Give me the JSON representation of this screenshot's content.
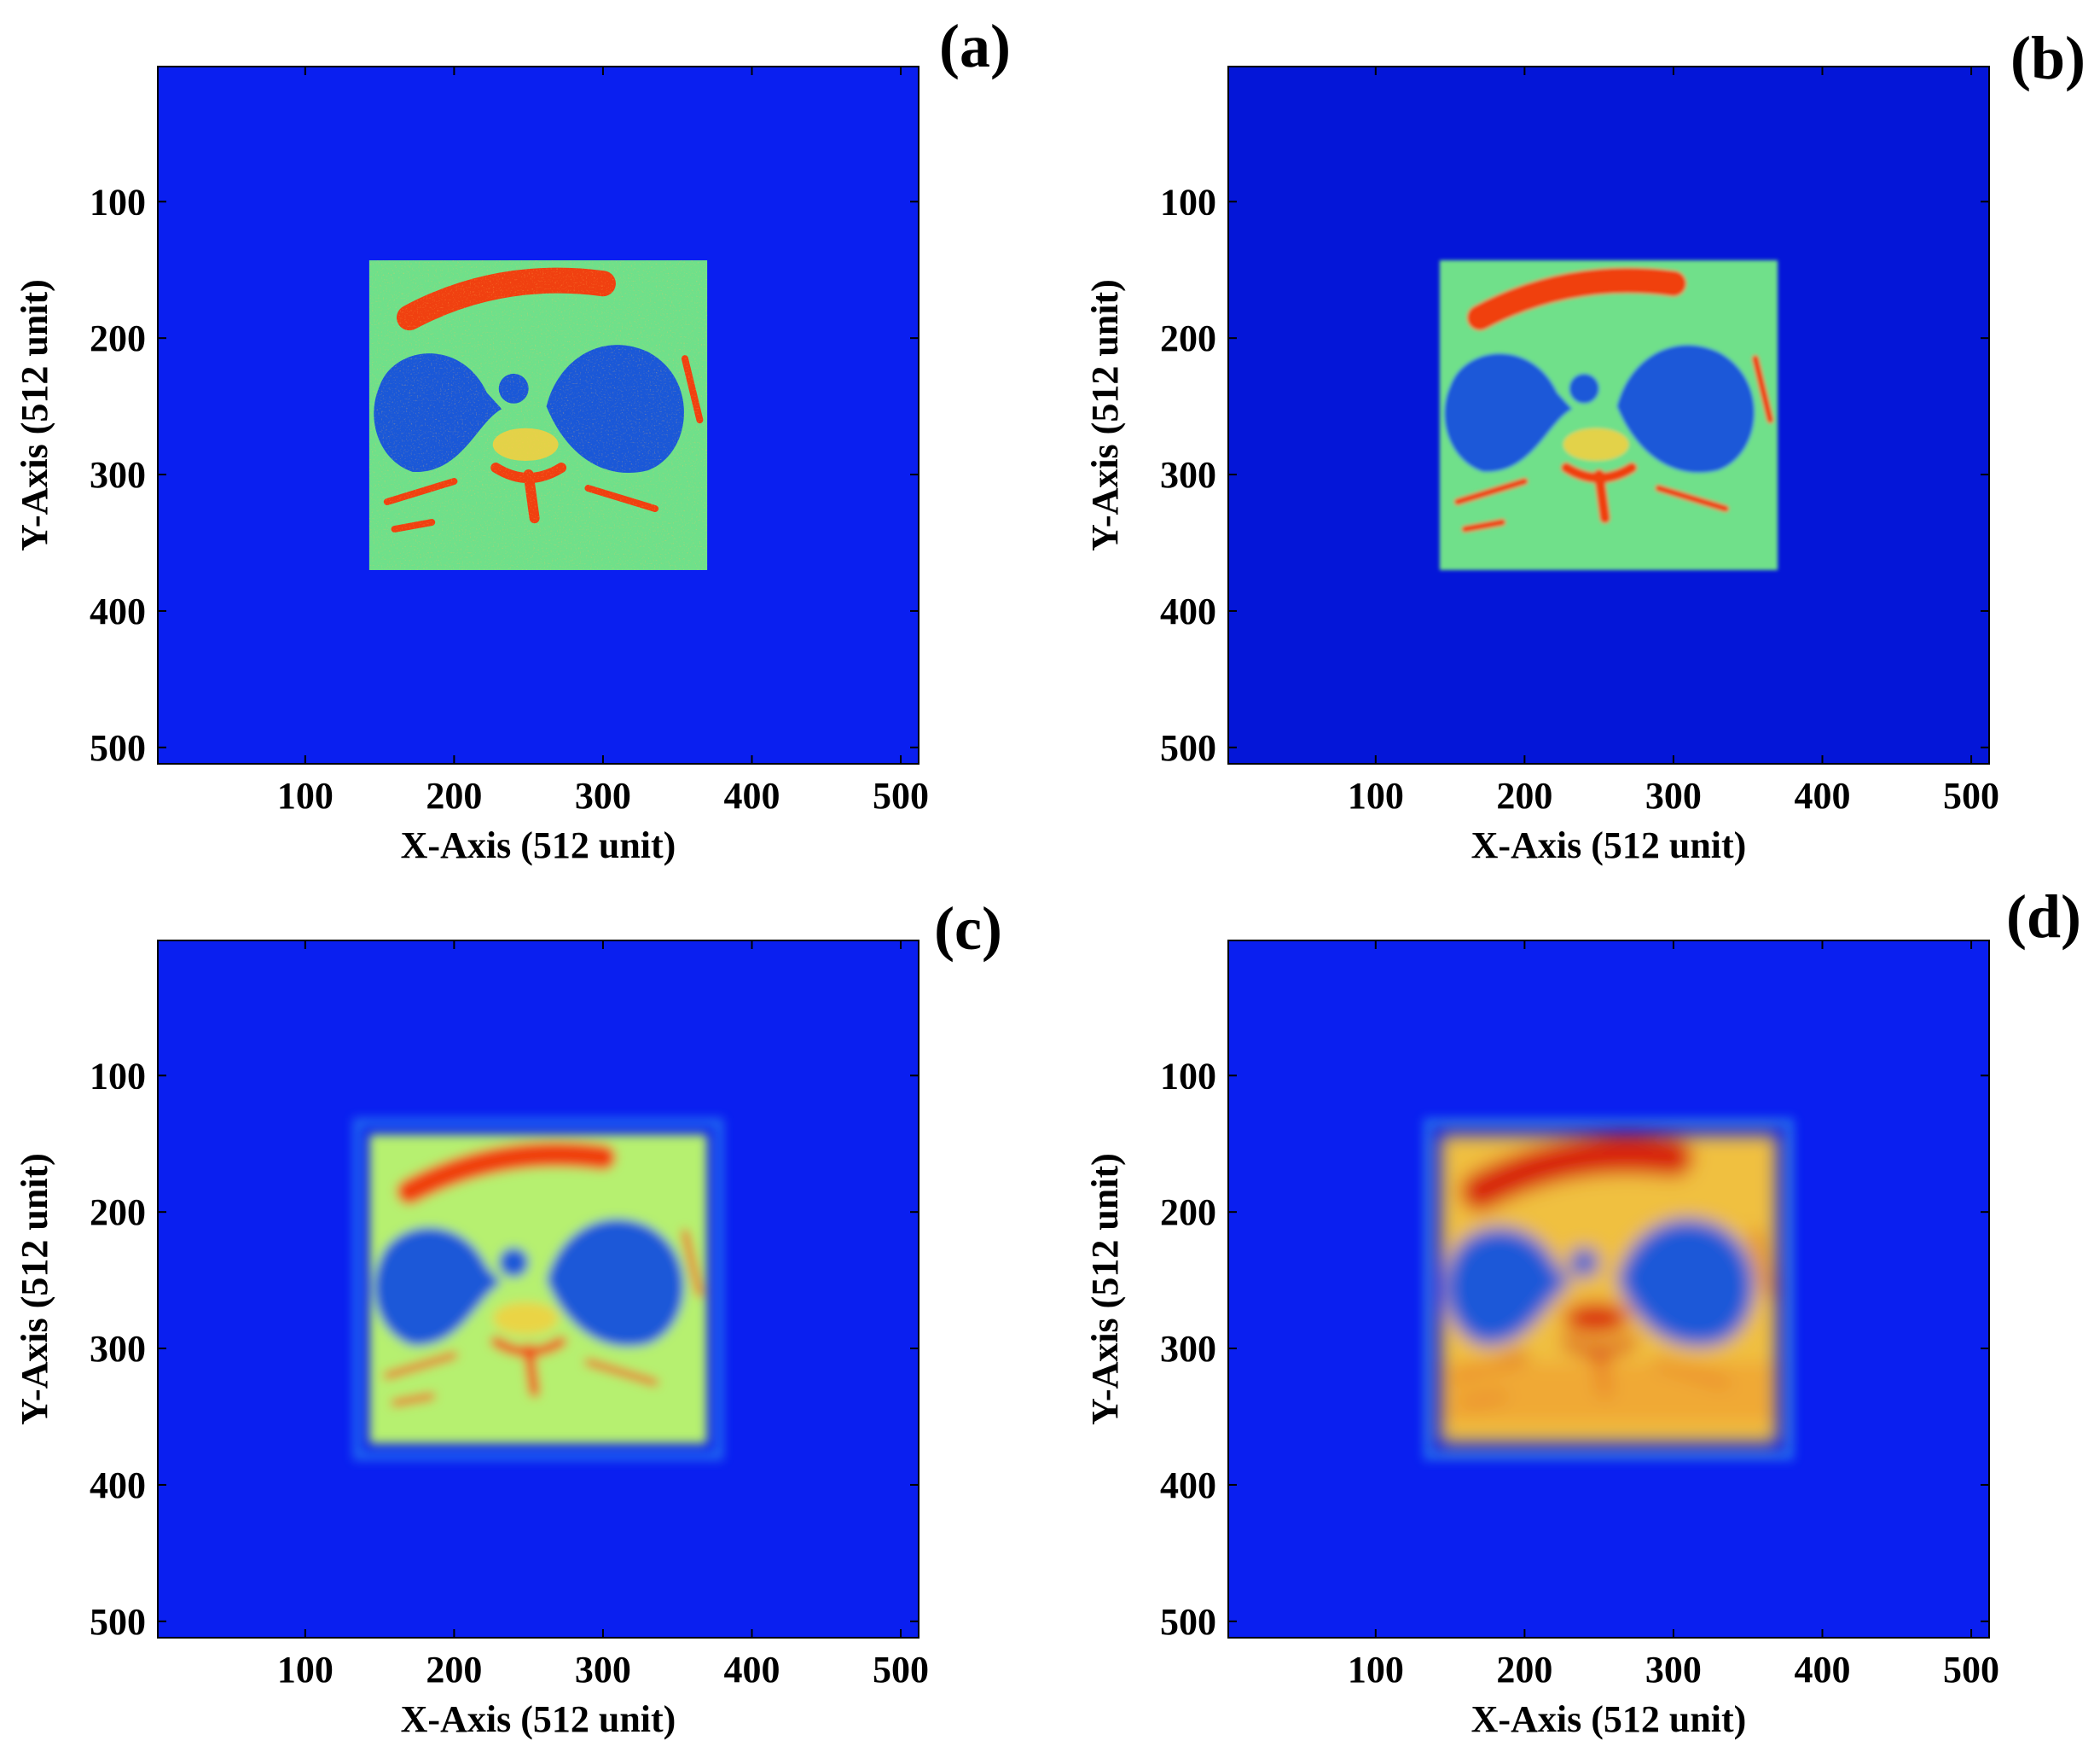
{
  "figure": {
    "colors": {
      "background": "#0a1ff0",
      "background_b": "#0416d8",
      "body": "#6fe08a",
      "body_smooth": "#b6f070",
      "body_warm": "#f0c040",
      "lung": "#1a58d8",
      "bone": "#f04010",
      "hot": "#d82008"
    },
    "panels": [
      {
        "id": "a",
        "letter": "(a)",
        "xlabel": "X-Axis (512 unit)",
        "ylabel": "Y-Axis (512 unit)",
        "style": "noisy"
      },
      {
        "id": "b",
        "letter": "(b)",
        "xlabel": "X-Axis (512 unit)",
        "ylabel": "Y-Axis (512 unit)",
        "style": "denoised"
      },
      {
        "id": "c",
        "letter": "(c)",
        "xlabel": "X-Axis (512 unit)",
        "ylabel": "Y-Axis (512 unit)",
        "style": "smoothed"
      },
      {
        "id": "d",
        "letter": "(d)",
        "xlabel": "X-Axis (512 unit)",
        "ylabel": "Y-Axis (512 unit)",
        "style": "blurred"
      }
    ]
  },
  "chart_data": [
    {
      "type": "heatmap",
      "panel": "a",
      "xlabel": "X-Axis (512 unit)",
      "ylabel": "Y-Axis (512 unit)",
      "xlim": [
        1,
        512
      ],
      "ylim": [
        1,
        512
      ],
      "y_reversed": true,
      "xticks": [
        100,
        200,
        300,
        400,
        500
      ],
      "yticks": [
        100,
        200,
        300,
        400,
        500
      ],
      "colormap": "jet",
      "object_extent": {
        "x": [
          143,
          370
        ],
        "y": [
          143,
          370
        ]
      }
    },
    {
      "type": "heatmap",
      "panel": "b",
      "xlabel": "X-Axis (512 unit)",
      "ylabel": "Y-Axis (512 unit)",
      "xlim": [
        1,
        512
      ],
      "ylim": [
        1,
        512
      ],
      "y_reversed": true,
      "xticks": [
        100,
        200,
        300,
        400,
        500
      ],
      "yticks": [
        100,
        200,
        300,
        400,
        500
      ],
      "colormap": "jet",
      "object_extent": {
        "x": [
          143,
          370
        ],
        "y": [
          143,
          370
        ]
      }
    },
    {
      "type": "heatmap",
      "panel": "c",
      "xlabel": "X-Axis (512 unit)",
      "ylabel": "Y-Axis (512 unit)",
      "xlim": [
        1,
        512
      ],
      "ylim": [
        1,
        512
      ],
      "y_reversed": true,
      "xticks": [
        100,
        200,
        300,
        400,
        500
      ],
      "yticks": [
        100,
        200,
        300,
        400,
        500
      ],
      "colormap": "jet",
      "object_extent": {
        "x": [
          143,
          370
        ],
        "y": [
          143,
          370
        ]
      }
    },
    {
      "type": "heatmap",
      "panel": "d",
      "xlabel": "X-Axis (512 unit)",
      "ylabel": "Y-Axis (512 unit)",
      "xlim": [
        1,
        512
      ],
      "ylim": [
        1,
        512
      ],
      "y_reversed": true,
      "xticks": [
        100,
        200,
        300,
        400,
        500
      ],
      "yticks": [
        100,
        200,
        300,
        400,
        500
      ],
      "colormap": "jet",
      "object_extent": {
        "x": [
          143,
          370
        ],
        "y": [
          143,
          370
        ]
      }
    }
  ]
}
